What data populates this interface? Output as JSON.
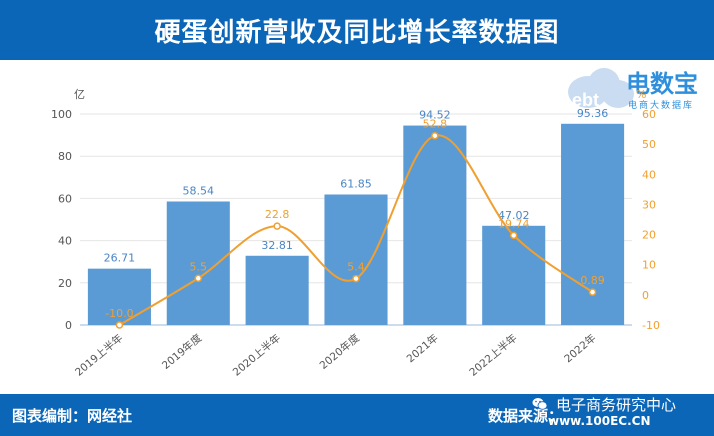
{
  "header": {
    "title": "硬蛋创新营收及同比增长率数据图"
  },
  "footer": {
    "left": "图表编制：网经社",
    "right": "数据来源："
  },
  "watermark": {
    "title": "电子商务研究中心",
    "url": "www.100EC.CN",
    "icon": "wechat-icon"
  },
  "logo": {
    "name": "电数宝",
    "sub": "电商大数据库",
    "mark": "ebt",
    "icon": "cloud-logo-icon",
    "colors": {
      "cloud": "#c9dcf2",
      "text": "#2f8fdc",
      "accent": "#e6a02e"
    }
  },
  "chart_data": {
    "type": "bar+line",
    "categories": [
      "2019上半年",
      "2019年度",
      "2020上半年",
      "2020年度",
      "2021年",
      "2022上半年",
      "2022年"
    ],
    "series": [
      {
        "type": "bar",
        "axis": "left",
        "values": [
          26.71,
          58.54,
          32.81,
          61.85,
          94.52,
          47.02,
          95.36
        ],
        "labels": [
          "26.71",
          "58.54",
          "32.81",
          "61.85",
          "94.52",
          "47.02",
          "95.36"
        ],
        "color": "#5b9bd5"
      },
      {
        "type": "line",
        "axis": "right",
        "values": [
          -10.0,
          5.5,
          22.8,
          5.4,
          52.8,
          19.74,
          0.89
        ],
        "labels": [
          "-10.0",
          "5.5",
          "22.8",
          "5.4",
          "52.8",
          "19.74",
          "0.89"
        ],
        "color": "#f0a030"
      }
    ],
    "y_left": {
      "unit": "亿",
      "min": 0,
      "max": 100,
      "ticks": [
        0,
        20,
        40,
        60,
        80,
        100
      ]
    },
    "y_right": {
      "unit": "%",
      "min": -10,
      "max": 60,
      "ticks": [
        -10,
        0,
        10,
        20,
        30,
        40,
        50,
        60
      ]
    },
    "grid": true,
    "legend": "none"
  }
}
